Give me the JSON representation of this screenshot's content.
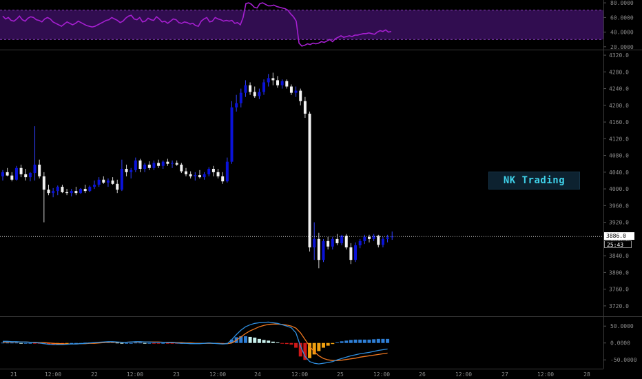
{
  "colors": {
    "background": "#000000",
    "bull_candle": "#0a12d8",
    "bear_candle": "#f2f2f2",
    "rsi_line": "#a61fd1",
    "rsi_band": "#3a0f5e",
    "macd_line": "#2f8fe0",
    "signal_line": "#f07820",
    "hist_pos_strong": "#c8f0ec",
    "hist_pos_weak": "#2f7fd6",
    "hist_neg_strong": "#d01818",
    "hist_neg_weak": "#f0a010",
    "grid": "#333333"
  },
  "watermark": "NK Trading",
  "last_price_label": "3886.0",
  "countdown_label": "25:43",
  "chart_data": [
    {
      "type": "line",
      "name": "rsi-panel",
      "y_ticks": [
        "80.0000",
        "60.0000",
        "40.0000",
        "20.0000"
      ],
      "ylim": [
        18,
        82
      ],
      "band": [
        30,
        70
      ],
      "x": [
        0,
        1,
        2,
        3,
        4,
        5,
        6,
        7,
        8,
        9,
        10,
        11,
        12,
        13,
        14,
        15,
        16,
        17,
        18,
        19,
        20,
        21,
        22,
        23,
        24,
        25,
        26,
        27,
        28,
        29,
        30,
        31,
        32,
        33,
        34,
        35,
        36,
        37,
        38,
        39,
        40,
        41,
        42,
        43,
        44,
        45,
        46,
        47,
        48,
        49,
        50,
        51,
        52,
        53,
        54,
        55,
        56,
        57,
        58,
        59,
        60,
        61,
        62,
        63,
        64,
        65,
        66,
        67,
        68,
        69,
        70,
        71,
        72,
        73,
        74,
        75,
        76,
        77,
        78,
        79,
        80,
        81,
        82,
        83,
        84,
        85,
        86,
        87,
        88,
        89,
        90,
        91,
        92,
        93,
        94,
        95,
        96,
        97,
        98,
        99,
        100,
        101,
        102,
        103,
        104,
        105,
        106,
        107,
        108,
        109,
        110,
        111,
        112,
        113,
        114,
        115,
        116,
        117,
        118,
        119,
        120,
        121,
        122,
        123,
        124,
        125,
        126,
        127,
        128,
        129,
        130,
        131,
        132,
        133,
        134,
        135,
        136,
        137,
        138,
        139
      ],
      "values": [
        62,
        58,
        60,
        56,
        55,
        58,
        62,
        57,
        55,
        59,
        61,
        60,
        57,
        56,
        54,
        58,
        60,
        58,
        54,
        52,
        50,
        48,
        51,
        54,
        52,
        50,
        52,
        55,
        53,
        51,
        49,
        48,
        47,
        48,
        50,
        52,
        54,
        56,
        57,
        60,
        58,
        56,
        53,
        55,
        59,
        62,
        63,
        58,
        57,
        60,
        54,
        55,
        59,
        57,
        56,
        61,
        58,
        54,
        55,
        52,
        55,
        58,
        57,
        53,
        52,
        54,
        53,
        51,
        52,
        49,
        48,
        55,
        58,
        60,
        54,
        55,
        60,
        58,
        57,
        55,
        56,
        55,
        56,
        52,
        53,
        50,
        60,
        79,
        80,
        78,
        74,
        73,
        79,
        80,
        78,
        76,
        76,
        77,
        75,
        74,
        73,
        72,
        70,
        65,
        61,
        55,
        25,
        21,
        22,
        24,
        23,
        25,
        24,
        25,
        27,
        26,
        28,
        30,
        27,
        31,
        33,
        35,
        33,
        34,
        35,
        34,
        36,
        36,
        37,
        38,
        38,
        39,
        38,
        37,
        40,
        42,
        41,
        43,
        40,
        41
      ]
    },
    {
      "type": "candlestick",
      "name": "price-panel",
      "y_ticks": [
        "4320.0",
        "4280.0",
        "4240.0",
        "4200.0",
        "4160.0",
        "4120.0",
        "4080.0",
        "4040.0",
        "4000.0",
        "3960.0",
        "3920.0",
        "3880.0",
        "3840.0",
        "3800.0",
        "3760.0",
        "3720.0"
      ],
      "ylim": [
        3700,
        4330
      ],
      "x_ticks": [
        "21",
        "12:00",
        "22",
        "12:00",
        "23",
        "12:00",
        "24",
        "12:00",
        "25",
        "12:00",
        "26",
        "12:00",
        "27",
        "12:00",
        "28"
      ],
      "last_price": 3886.0,
      "ohlc": [
        [
          4030,
          4045,
          4020,
          4040
        ],
        [
          4040,
          4050,
          4030,
          4032
        ],
        [
          4032,
          4040,
          4018,
          4022
        ],
        [
          4022,
          4055,
          4020,
          4050
        ],
        [
          4050,
          4058,
          4028,
          4035
        ],
        [
          4035,
          4048,
          4020,
          4028
        ],
        [
          4028,
          4040,
          4018,
          4038
        ],
        [
          4038,
          4150,
          4020,
          4058
        ],
        [
          4058,
          4070,
          4025,
          4030
        ],
        [
          4030,
          4040,
          3920,
          3998
        ],
        [
          3998,
          4010,
          3985,
          3990
        ],
        [
          3990,
          4002,
          3980,
          3995
        ],
        [
          3995,
          4008,
          3985,
          4005
        ],
        [
          4005,
          4010,
          3990,
          3992
        ],
        [
          3992,
          4000,
          3985,
          3990
        ],
        [
          3990,
          4000,
          3982,
          3995
        ],
        [
          3995,
          4005,
          3985,
          3990
        ],
        [
          3990,
          4002,
          3988,
          4000
        ],
        [
          4000,
          4010,
          3990,
          3995
        ],
        [
          3995,
          4008,
          3992,
          4005
        ],
        [
          4005,
          4020,
          4000,
          4010
        ],
        [
          4010,
          4028,
          4005,
          4022
        ],
        [
          4022,
          4030,
          4012,
          4015
        ],
        [
          4015,
          4025,
          4005,
          4020
        ],
        [
          4020,
          4028,
          4010,
          4012
        ],
        [
          4012,
          4022,
          3990,
          3998
        ],
        [
          3998,
          4070,
          3995,
          4048
        ],
        [
          4048,
          4058,
          4030,
          4040
        ],
        [
          4040,
          4050,
          4025,
          4045
        ],
        [
          4045,
          4075,
          4040,
          4068
        ],
        [
          4068,
          4072,
          4040,
          4048
        ],
        [
          4048,
          4062,
          4040,
          4058
        ],
        [
          4058,
          4066,
          4045,
          4050
        ],
        [
          4050,
          4068,
          4045,
          4062
        ],
        [
          4062,
          4070,
          4050,
          4055
        ],
        [
          4055,
          4068,
          4048,
          4065
        ],
        [
          4065,
          4072,
          4055,
          4060
        ],
        [
          4060,
          4068,
          4050,
          4062
        ],
        [
          4062,
          4068,
          4055,
          4058
        ],
        [
          4058,
          4062,
          4038,
          4042
        ],
        [
          4042,
          4050,
          4030,
          4035
        ],
        [
          4035,
          4042,
          4025,
          4030
        ],
        [
          4030,
          4040,
          4020,
          4033
        ],
        [
          4033,
          4045,
          4025,
          4028
        ],
        [
          4028,
          4040,
          4022,
          4035
        ],
        [
          4035,
          4052,
          4030,
          4048
        ],
        [
          4048,
          4055,
          4030,
          4040
        ],
        [
          4040,
          4048,
          4025,
          4030
        ],
        [
          4030,
          4040,
          4012,
          4018
        ],
        [
          4018,
          4075,
          4015,
          4065
        ],
        [
          4065,
          4210,
          4060,
          4195
        ],
        [
          4195,
          4225,
          4185,
          4205
        ],
        [
          4205,
          4240,
          4195,
          4230
        ],
        [
          4230,
          4260,
          4220,
          4248
        ],
        [
          4248,
          4255,
          4225,
          4232
        ],
        [
          4232,
          4245,
          4218,
          4222
        ],
        [
          4222,
          4240,
          4215,
          4232
        ],
        [
          4232,
          4262,
          4225,
          4255
        ],
        [
          4255,
          4275,
          4245,
          4265
        ],
        [
          4265,
          4278,
          4248,
          4260
        ],
        [
          4260,
          4270,
          4242,
          4248
        ],
        [
          4248,
          4262,
          4240,
          4258
        ],
        [
          4258,
          4262,
          4240,
          4245
        ],
        [
          4245,
          4250,
          4225,
          4230
        ],
        [
          4230,
          4245,
          4220,
          4235
        ],
        [
          4235,
          4240,
          4200,
          4210
        ],
        [
          4210,
          4220,
          4170,
          4180
        ],
        [
          4180,
          4185,
          3850,
          3860
        ],
        [
          3860,
          3920,
          3830,
          3880
        ],
        [
          3880,
          3895,
          3810,
          3830
        ],
        [
          3830,
          3880,
          3825,
          3875
        ],
        [
          3875,
          3885,
          3855,
          3862
        ],
        [
          3862,
          3885,
          3855,
          3880
        ],
        [
          3880,
          3892,
          3865,
          3870
        ],
        [
          3870,
          3890,
          3865,
          3888
        ],
        [
          3888,
          3892,
          3855,
          3860
        ],
        [
          3860,
          3870,
          3820,
          3830
        ],
        [
          3830,
          3872,
          3825,
          3865
        ],
        [
          3865,
          3880,
          3858,
          3875
        ],
        [
          3875,
          3890,
          3868,
          3885
        ],
        [
          3885,
          3890,
          3872,
          3880
        ],
        [
          3880,
          3892,
          3875,
          3888
        ],
        [
          3888,
          3890,
          3860,
          3866
        ],
        [
          3866,
          3885,
          3860,
          3880
        ],
        [
          3880,
          3890,
          3872,
          3884
        ],
        [
          3884,
          3898,
          3878,
          3886
        ]
      ]
    },
    {
      "type": "bar",
      "name": "macd-panel",
      "y_ticks": [
        "50.0000",
        "0.0000",
        "-50.0000"
      ],
      "ylim": [
        -70,
        75
      ],
      "macd": [
        5,
        5,
        4,
        4,
        3,
        3,
        2,
        1,
        0,
        -2,
        -4,
        -5,
        -5,
        -5,
        -4,
        -3,
        -3,
        -2,
        -1,
        0,
        1,
        2,
        3,
        4,
        4,
        3,
        2,
        2,
        3,
        4,
        4,
        3,
        3,
        2,
        2,
        2,
        1,
        1,
        0,
        -1,
        -1,
        -2,
        -2,
        -2,
        -1,
        0,
        -1,
        -2,
        -3,
        -2,
        10,
        25,
        38,
        48,
        54,
        58,
        60,
        61,
        62,
        60,
        58,
        54,
        50,
        45,
        30,
        -10,
        -40,
        -55,
        -60,
        -62,
        -60,
        -58,
        -55,
        -50,
        -46,
        -42,
        -38,
        -35,
        -32,
        -30,
        -28,
        -25,
        -22,
        -20,
        -18
      ],
      "signal": [
        3,
        3,
        3,
        3,
        3,
        3,
        2,
        2,
        1,
        1,
        0,
        -1,
        -2,
        -2,
        -3,
        -3,
        -3,
        -2,
        -2,
        -1,
        -1,
        0,
        1,
        2,
        2,
        2,
        2,
        2,
        3,
        3,
        3,
        3,
        3,
        3,
        3,
        2,
        2,
        2,
        1,
        1,
        0,
        0,
        -1,
        -1,
        -1,
        -1,
        -1,
        -1,
        -2,
        -2,
        0,
        8,
        18,
        28,
        36,
        42,
        48,
        52,
        55,
        56,
        56,
        55,
        53,
        50,
        44,
        30,
        10,
        -10,
        -26,
        -38,
        -46,
        -50,
        -52,
        -52,
        -51,
        -49,
        -47,
        -45,
        -42,
        -40,
        -38,
        -36,
        -34,
        -32,
        -30
      ],
      "histogram": [
        1,
        1,
        1,
        1,
        0,
        0,
        0,
        -1,
        -1,
        -3,
        -4,
        -4,
        -3,
        -3,
        -1,
        0,
        0,
        0,
        1,
        1,
        2,
        2,
        2,
        2,
        2,
        1,
        0,
        0,
        0,
        1,
        1,
        0,
        0,
        -1,
        -1,
        0,
        -1,
        -1,
        -1,
        -2,
        -1,
        -2,
        -1,
        -1,
        0,
        1,
        0,
        -1,
        -1,
        0,
        10,
        17,
        20,
        20,
        18,
        16,
        12,
        9,
        7,
        4,
        2,
        -1,
        -3,
        -5,
        -14,
        -40,
        -50,
        -45,
        -34,
        -24,
        -14,
        -8,
        -3,
        2,
        5,
        7,
        9,
        10,
        10,
        10,
        10,
        11,
        12,
        12,
        12
      ]
    }
  ]
}
